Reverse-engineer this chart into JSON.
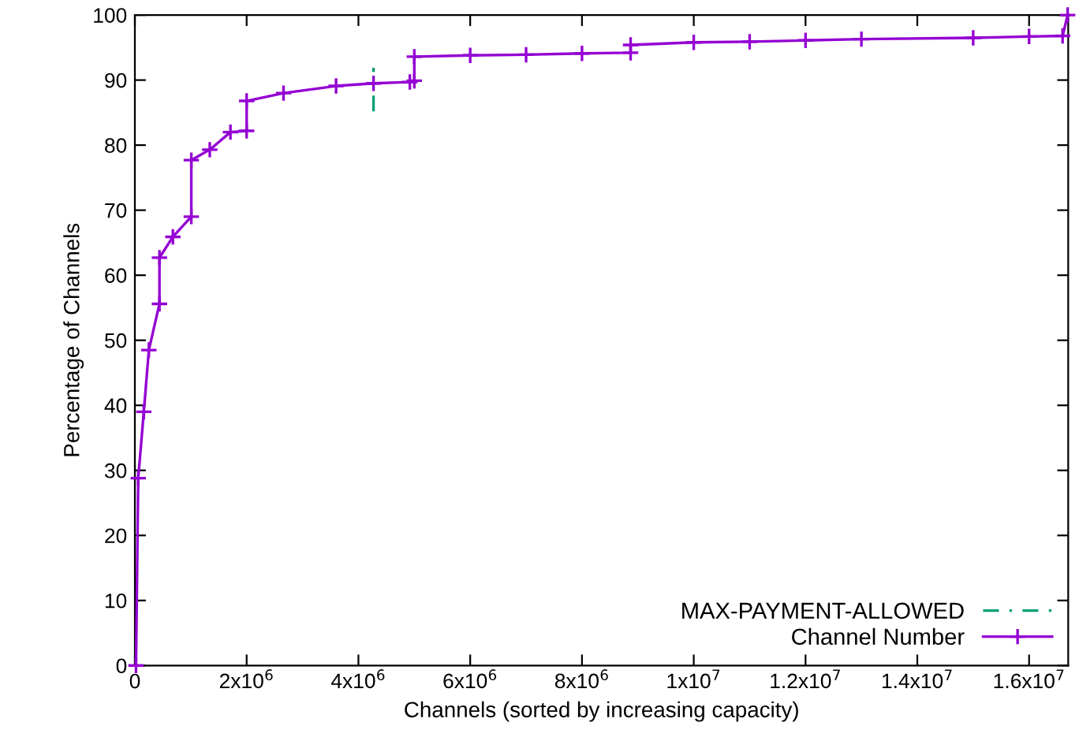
{
  "chart_data": {
    "type": "line",
    "xlabel": "Channels (sorted by increasing capacity)",
    "ylabel": "Percentage of Channels",
    "xlim": [
      0,
      16700000
    ],
    "xticks": [
      0,
      {
        "value": 2000000,
        "label": "2x10$^{6}$"
      },
      {
        "value": 4000000,
        "label": "4x10$^{6}$"
      },
      {
        "value": 6000000,
        "label": "6x10$^{6}$"
      },
      {
        "value": 8000000,
        "label": "8x10$^{6}$"
      },
      {
        "value": 10000000,
        "label": "1x10$^{7}$"
      },
      {
        "value": 12000000,
        "label": "1.2x10$^{7}$"
      },
      {
        "value": 14000000,
        "label": "1.4x10$^{7}$"
      },
      {
        "value": 16000000,
        "label": "1.6x10$^{7}$"
      }
    ],
    "ylim": [
      0,
      100
    ],
    "yticks": [
      0,
      10,
      20,
      30,
      40,
      50,
      60,
      70,
      80,
      90,
      100
    ],
    "grid": false,
    "legend": "bottom right",
    "series": [
      {
        "name": "MAX-PAYMENT-ALLOWED",
        "color": "#009e73",
        "line_style": "dashed",
        "marker": "none",
        "x": [
          4270000,
          4270000
        ],
        "values": [
          85.2,
          91.9
        ]
      },
      {
        "name": "Channel Number",
        "color": "#9400d3",
        "line_style": "solid",
        "marker": "cross",
        "x": [
          20000,
          60000,
          160000,
          250000,
          440000,
          440000,
          680000,
          1010000,
          1010000,
          1340000,
          1710000,
          2000000,
          2000000,
          2660000,
          3600000,
          4270000,
          4920000,
          5000000,
          5000000,
          6000000,
          7000000,
          8000000,
          8870000,
          8870000,
          10000000,
          11000000,
          12000000,
          13000000,
          15000000,
          16000000,
          16600000,
          16690000
        ],
        "values": [
          0,
          28.8,
          39,
          48.5,
          55.6,
          62.7,
          65.9,
          69,
          77.7,
          79.3,
          82,
          82.2,
          86.8,
          88,
          89.1,
          89.5,
          89.7,
          89.9,
          93.6,
          93.8,
          93.9,
          94.1,
          94.2,
          95.4,
          95.8,
          95.9,
          96.1,
          96.3,
          96.5,
          96.7,
          96.8,
          100
        ]
      }
    ]
  }
}
